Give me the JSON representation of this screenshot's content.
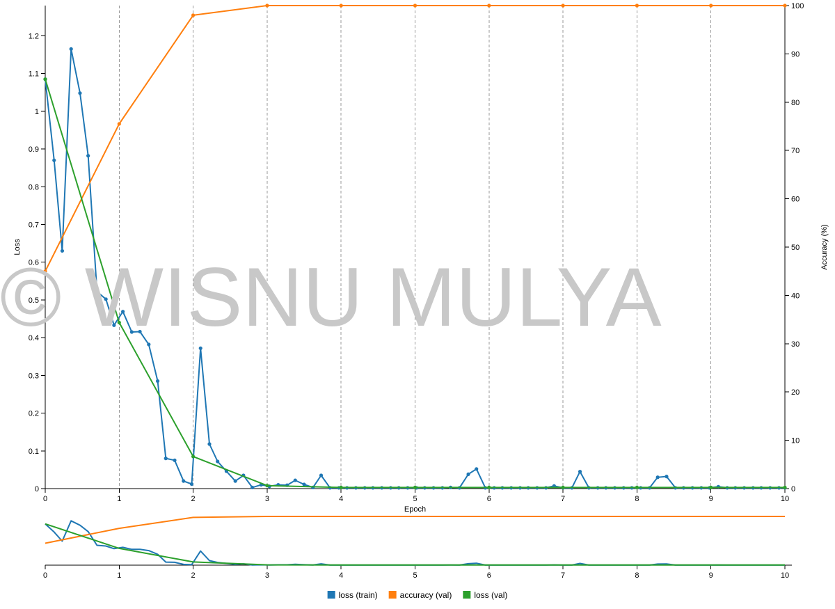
{
  "watermark": "© WISNU MULYA",
  "colors": {
    "loss_train": "#1f77b4",
    "accuracy_val": "#ff7f0e",
    "loss_val": "#2ca02c",
    "grid": "#999999"
  },
  "chart_data": {
    "type": "line",
    "xlabel": "Epoch",
    "ylabel_left": "Loss",
    "ylabel_right": "Accuracy (%)",
    "xlim": [
      0,
      10
    ],
    "ylim_left": [
      0,
      1.28
    ],
    "ylim_right": [
      0,
      100
    ],
    "x_ticks": [
      "0",
      "1",
      "2",
      "3",
      "4",
      "5",
      "6",
      "7",
      "8",
      "9",
      "10"
    ],
    "y_left_ticks": [
      "0",
      "0.1",
      "0.2",
      "0.3",
      "0.4",
      "0.5",
      "0.6",
      "0.7",
      "0.8",
      "0.9",
      "1",
      "1.1",
      "1.2"
    ],
    "y_right_ticks": [
      "0",
      "10",
      "20",
      "30",
      "40",
      "50",
      "60",
      "70",
      "80",
      "90",
      "100"
    ],
    "grid": "vertical dashed at each epoch",
    "legend_position": "bottom-center",
    "series": [
      {
        "name": "loss (train)",
        "axis": "left",
        "x": [
          0,
          0.12,
          0.23,
          0.35,
          0.47,
          0.58,
          0.7,
          0.82,
          0.93,
          1.05,
          1.17,
          1.28,
          1.4,
          1.52,
          1.63,
          1.75,
          1.87,
          1.98,
          2.1,
          2.22,
          2.33,
          2.45,
          2.57,
          2.68,
          2.8,
          2.92,
          3.03,
          3.15,
          3.27,
          3.38,
          3.5,
          3.62,
          3.73,
          3.85,
          3.97,
          4.08,
          4.2,
          4.32,
          4.43,
          4.55,
          4.67,
          4.78,
          4.9,
          5.02,
          5.13,
          5.25,
          5.37,
          5.48,
          5.6,
          5.72,
          5.83,
          5.95,
          6.07,
          6.18,
          6.3,
          6.42,
          6.53,
          6.65,
          6.77,
          6.88,
          7.0,
          7.12,
          7.23,
          7.35,
          7.47,
          7.58,
          7.7,
          7.82,
          7.93,
          8.05,
          8.17,
          8.28,
          8.4,
          8.52,
          8.63,
          8.75,
          8.87,
          8.98,
          9.1,
          9.22,
          9.33,
          9.45,
          9.57,
          9.68,
          9.8,
          9.92,
          10.0
        ],
        "values": [
          1.085,
          0.87,
          0.63,
          1.165,
          1.048,
          0.882,
          0.522,
          0.502,
          0.433,
          0.469,
          0.415,
          0.416,
          0.382,
          0.285,
          0.08,
          0.075,
          0.02,
          0.012,
          0.372,
          0.118,
          0.072,
          0.046,
          0.02,
          0.035,
          0.003,
          0.01,
          0.006,
          0.01,
          0.009,
          0.022,
          0.011,
          0.003,
          0.035,
          0.002,
          0.002,
          0.002,
          0.002,
          0.002,
          0.002,
          0.002,
          0.002,
          0.002,
          0.002,
          0.002,
          0.002,
          0.002,
          0.002,
          0.003,
          0.002,
          0.038,
          0.052,
          0.002,
          0.002,
          0.002,
          0.002,
          0.002,
          0.002,
          0.002,
          0.002,
          0.007,
          0.002,
          0.002,
          0.045,
          0.002,
          0.002,
          0.002,
          0.002,
          0.002,
          0.002,
          0.002,
          0.002,
          0.03,
          0.032,
          0.002,
          0.002,
          0.002,
          0.002,
          0.002,
          0.005,
          0.002,
          0.002,
          0.002,
          0.002,
          0.002,
          0.002,
          0.002,
          0.002
        ]
      },
      {
        "name": "accuracy (val)",
        "axis": "right",
        "x": [
          0,
          1,
          2,
          3,
          4,
          5,
          6,
          7,
          8,
          9,
          10
        ],
        "values": [
          45,
          75.5,
          98,
          100,
          100,
          100,
          100,
          100,
          100,
          100,
          100
        ]
      },
      {
        "name": "loss (val)",
        "axis": "left",
        "x": [
          0,
          1,
          2,
          3,
          4,
          5,
          6,
          7,
          8,
          9,
          10
        ],
        "values": [
          1.085,
          0.44,
          0.085,
          0.008,
          0.003,
          0.003,
          0.003,
          0.003,
          0.003,
          0.003,
          0.003
        ]
      }
    ]
  }
}
